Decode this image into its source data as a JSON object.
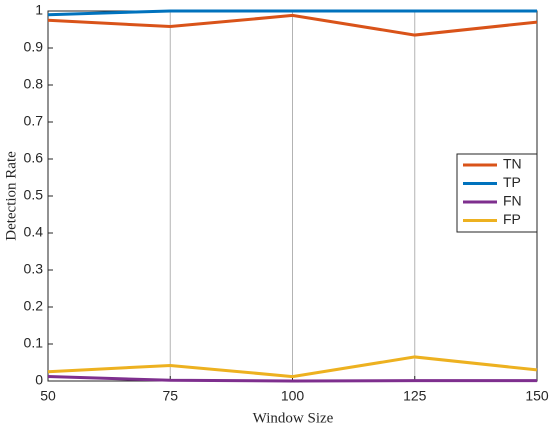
{
  "chart_data": {
    "type": "line",
    "xlabel": "Window Size",
    "ylabel": "Detection Rate",
    "x": [
      50,
      75,
      100,
      125,
      150
    ],
    "series": [
      {
        "name": "TN",
        "color": "#d95319",
        "values": [
          0.975,
          0.958,
          0.988,
          0.935,
          0.97
        ]
      },
      {
        "name": "TP",
        "color": "#0072bd",
        "values": [
          0.99,
          1,
          1,
          1,
          1
        ]
      },
      {
        "name": "FN",
        "color": "#7e2f8e",
        "values": [
          0.012,
          0.002,
          0,
          0.001,
          0.001
        ]
      },
      {
        "name": "FP",
        "color": "#edb120",
        "values": [
          0.025,
          0.042,
          0.012,
          0.065,
          0.03
        ]
      }
    ],
    "xlim": [
      50,
      150
    ],
    "xticks": [
      50,
      75,
      100,
      125,
      150
    ],
    "ylim": [
      0,
      1
    ],
    "yticks": [
      0,
      0.1,
      0.2,
      0.3,
      0.4,
      0.5,
      0.6,
      0.7,
      0.8,
      0.9,
      1
    ],
    "grid": "x",
    "legend": "east"
  }
}
